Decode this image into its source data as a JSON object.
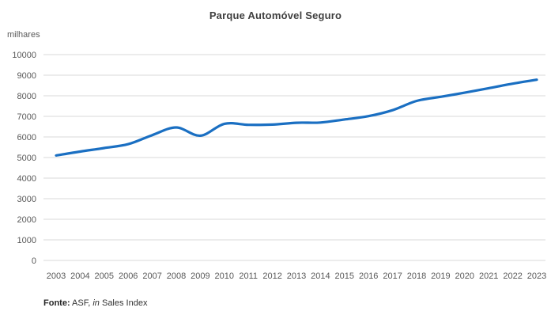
{
  "chart_data": {
    "type": "line",
    "title": "Parque Automóvel Seguro",
    "unit_label": "milhares",
    "categories": [
      "2003",
      "2004",
      "2005",
      "2006",
      "2007",
      "2008",
      "2009",
      "2010",
      "2011",
      "2012",
      "2013",
      "2014",
      "2015",
      "2016",
      "2017",
      "2018",
      "2019",
      "2020",
      "2021",
      "2022",
      "2023"
    ],
    "series": [
      {
        "name": "Parque Automóvel Seguro (milhares)",
        "values": [
          5100,
          5290,
          5460,
          5650,
          6090,
          6460,
          6060,
          6640,
          6590,
          6600,
          6690,
          6700,
          6850,
          7010,
          7300,
          7750,
          7950,
          8150,
          8370,
          8590,
          8780
        ]
      }
    ],
    "xlabel": "",
    "ylabel": "milhares",
    "ylim": [
      0,
      10000
    ],
    "y_tick_step": 1000,
    "y_tick_labels": [
      "0",
      "1000",
      "2000",
      "3000",
      "4000",
      "5000",
      "6000",
      "7000",
      "8000",
      "9000",
      "10000"
    ],
    "grid": "horizontal",
    "legend": "none",
    "smoothed": true,
    "colors": {
      "line": "#1a6fc2",
      "gridline": "#d9d9d9",
      "axis_text": "#595959",
      "title_text": "#3f3f3f"
    },
    "source_note": {
      "label": "Fonte:",
      "pre_italic": " ASF, ",
      "italic": "in",
      "post_italic": " Sales Index"
    }
  }
}
